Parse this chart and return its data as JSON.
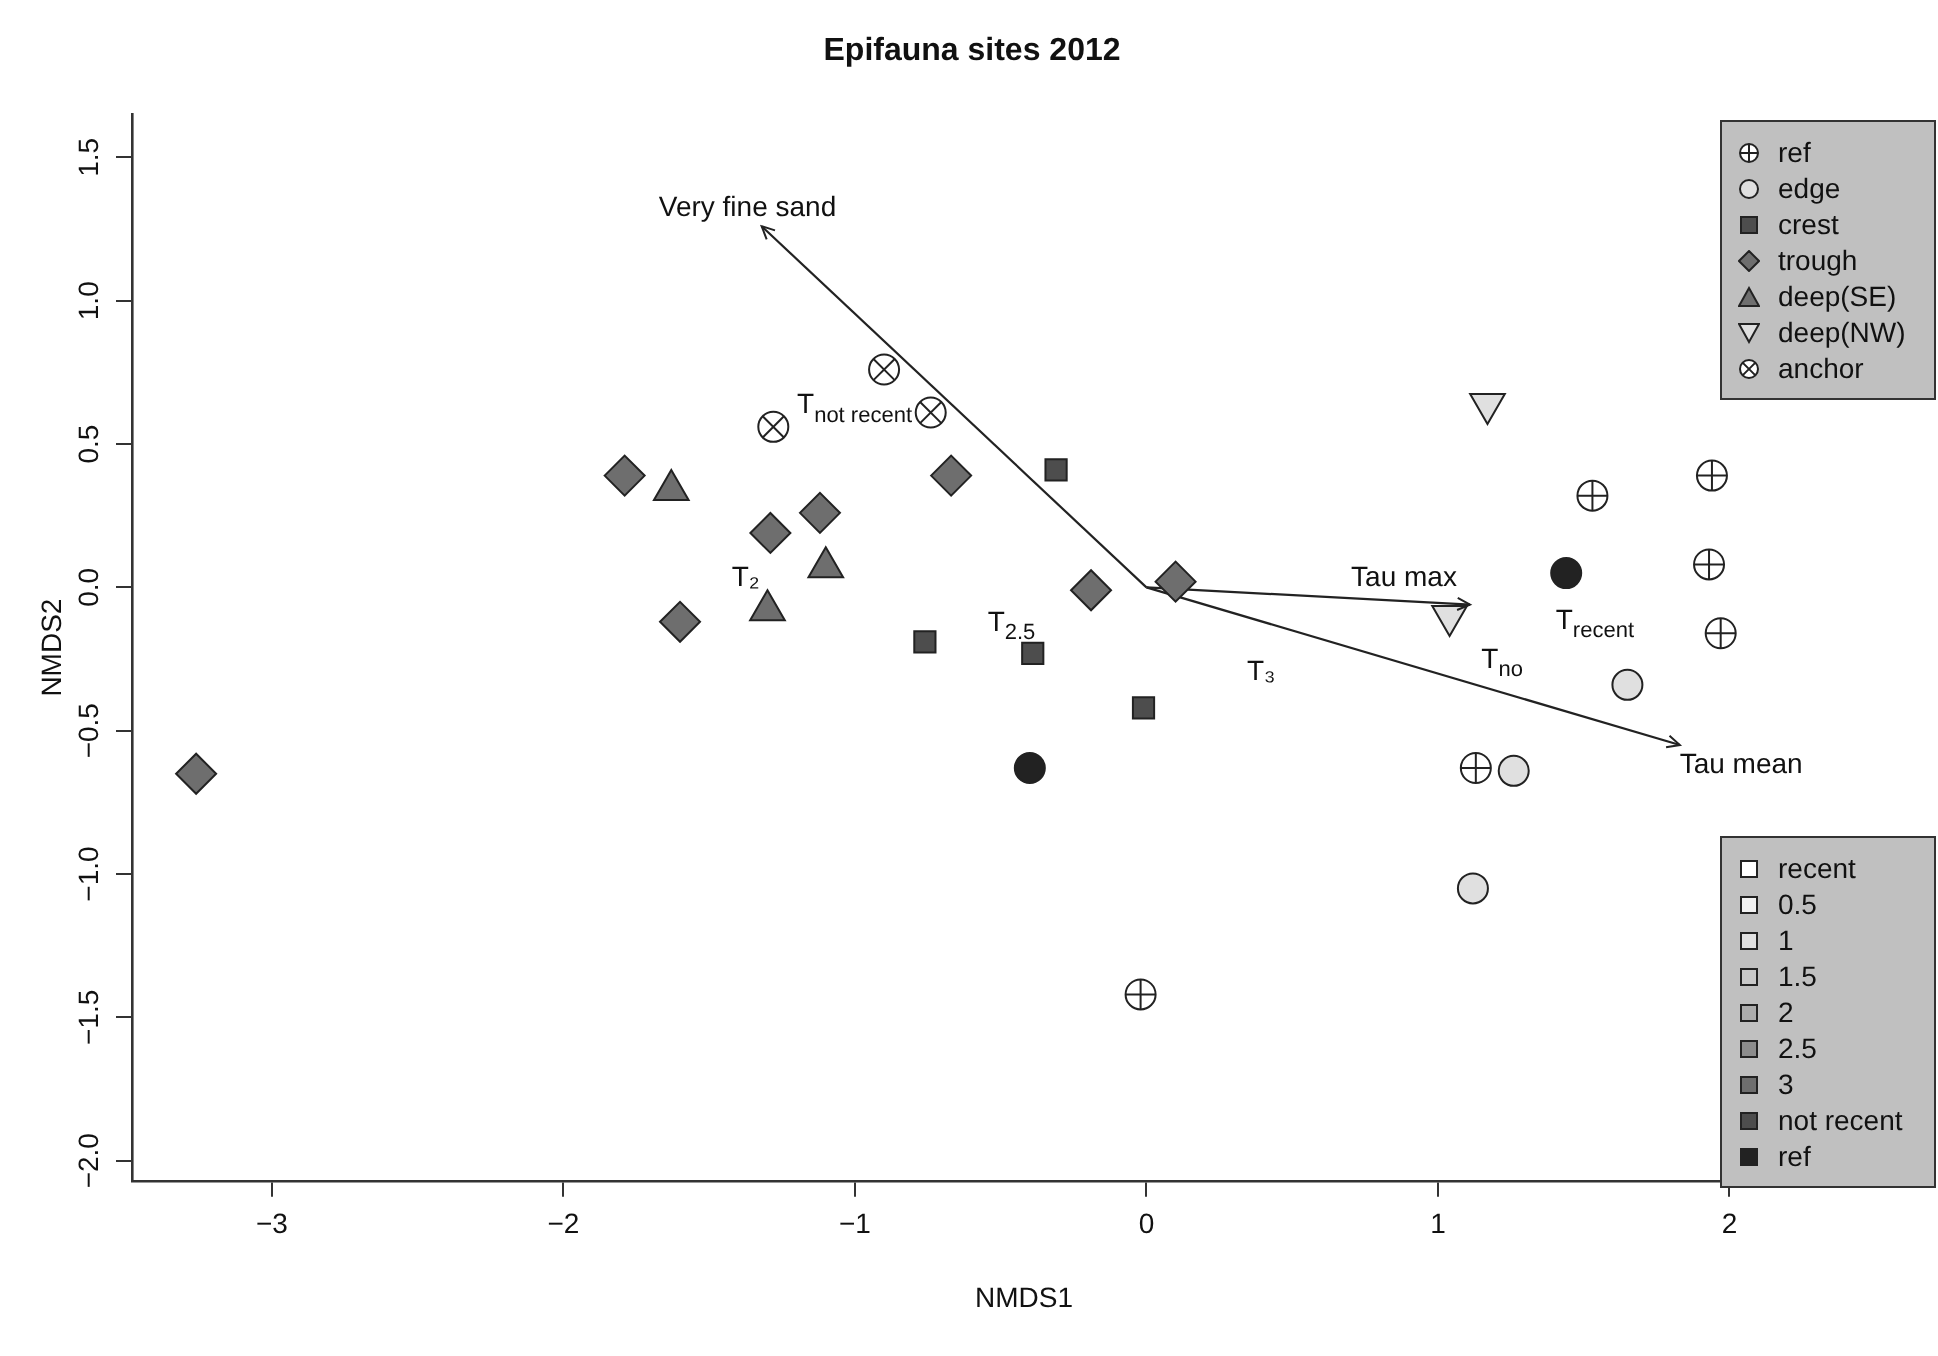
{
  "chart_data": {
    "type": "scatter",
    "title": "Epifauna sites 2012",
    "xlabel": "NMDS1",
    "ylabel": "NMDS2",
    "xlim": [
      -3.48,
      2.64
    ],
    "xticks": [
      {
        "value": -3,
        "label": "−3"
      },
      {
        "value": -2,
        "label": "−2"
      },
      {
        "value": -1,
        "label": "−1"
      },
      0,
      1,
      2
    ],
    "ylim": [
      -2.07,
      1.65
    ],
    "yticks": [
      {
        "value": -2,
        "label": "−2.0"
      },
      {
        "value": -1.5,
        "label": "−1.5"
      },
      {
        "value": -1,
        "label": "−1.0"
      },
      {
        "value": -0.5,
        "label": "−0.5"
      },
      {
        "value": 0,
        "label": "0.0"
      },
      0.5,
      {
        "value": 1,
        "label": "1.0"
      },
      1.5
    ],
    "grid": false,
    "legend": "right",
    "series": [
      {
        "name": "ref",
        "marker": "circle",
        "color": "#222222",
        "x": [
          1.53,
          1.94,
          1.93,
          1.97,
          1.13,
          -0.02
        ],
        "values": [
          0.32,
          0.39,
          0.08,
          -0.16,
          -0.63,
          -1.42
        ]
      },
      {
        "name": "edge",
        "marker": "circle",
        "color": "#e0e0e0",
        "colors": [
          "#222222",
          "#222222",
          "#e0e0e0",
          "#e0e0e0",
          "#e0e0e0"
        ],
        "x": [
          -0.4,
          1.44,
          1.65,
          1.26,
          1.12
        ],
        "values": [
          -0.63,
          0.05,
          -0.34,
          -0.64,
          -1.05
        ]
      },
      {
        "name": "crest",
        "marker": "square",
        "color": "#4d4d4d",
        "x": [
          -0.76,
          -0.31,
          -0.39,
          -0.01
        ],
        "values": [
          -0.19,
          0.41,
          -0.23,
          -0.42
        ]
      },
      {
        "name": "trough",
        "marker": "diamond",
        "color": "#6e6e6e",
        "x": [
          -1.79,
          -1.29,
          -1.12,
          -1.6,
          -0.67,
          -3.26,
          -0.19,
          0.1
        ],
        "values": [
          0.39,
          0.19,
          0.26,
          -0.12,
          0.39,
          -0.65,
          -0.01,
          0.02
        ]
      },
      {
        "name": "deep(SE)",
        "marker": "triangle",
        "color": "#6e6e6e",
        "x": [
          -1.63,
          -1.1,
          -1.3
        ],
        "values": [
          0.34,
          0.07,
          -0.08
        ]
      },
      {
        "name": "deep(NW)",
        "marker": "triangle-down",
        "color": "#e0e0e0",
        "x": [
          1.17,
          1.04
        ],
        "values": [
          0.64,
          -0.1
        ]
      },
      {
        "name": "anchor",
        "marker": "circle",
        "color": "#222222",
        "x": [
          -0.9,
          -0.74,
          -1.28
        ],
        "values": [
          0.76,
          0.61,
          0.56
        ]
      },
      {
        "name": "recent",
        "marker": "square",
        "color": "#ffffff"
      },
      {
        "name": "0.5",
        "marker": "square",
        "color": "#f2f2f2"
      },
      {
        "name": "1",
        "marker": "square",
        "color": "#e0e0e0"
      },
      {
        "name": "1.5",
        "marker": "square",
        "color": "#c8c8c8"
      },
      {
        "name": "2",
        "marker": "square",
        "color": "#acacac"
      },
      {
        "name": "2.5",
        "marker": "square",
        "color": "#8c8c8c"
      },
      {
        "name": "3",
        "marker": "square",
        "color": "#6e6e6e"
      },
      {
        "name": "not recent",
        "marker": "square",
        "color": "#4d4d4d"
      },
      {
        "name": "ref",
        "marker": "square",
        "color": "#222222"
      },
      {
        "type": "line",
        "color": "#222222",
        "x": [
          0,
          -1.32
        ],
        "values": [
          0,
          1.26
        ]
      },
      {
        "type": "line",
        "color": "#222222",
        "x": [
          0,
          1.11
        ],
        "values": [
          0,
          -0.06
        ]
      },
      {
        "type": "line",
        "color": "#222222",
        "x": [
          0,
          1.83
        ],
        "values": [
          0,
          -0.55
        ]
      }
    ],
    "annotations": [
      "Very fine sand",
      "Tau max",
      "Tau mean",
      "T₂",
      "T$_{not recent}$",
      "T$_{2.5}$",
      "T₃",
      "T$_{no}$",
      "T$_{recent}$"
    ]
  }
}
